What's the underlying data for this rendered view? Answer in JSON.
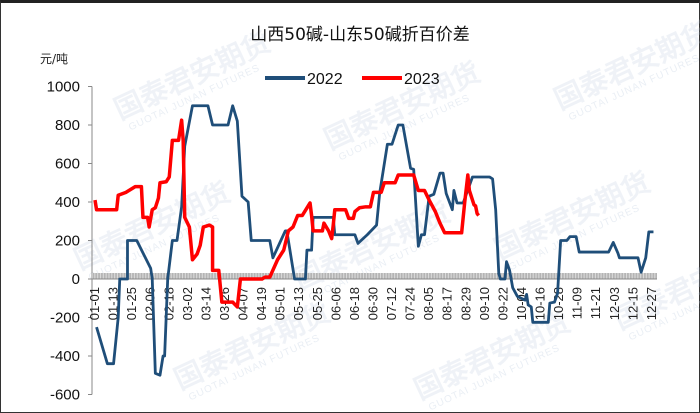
{
  "watermark": {
    "text": "国泰君安期货",
    "subtext": "GUOTAI JUNAN FUTURES"
  },
  "chart_data": {
    "type": "line",
    "title": "山西50碱-山东50碱折百价差",
    "ylabel": "元/吨",
    "xlabel": "",
    "ylim": [
      -600,
      1000
    ],
    "yticks": [
      1000,
      800,
      600,
      400,
      200,
      0,
      -200,
      -400,
      -600
    ],
    "xticks": [
      "01-01",
      "01-13",
      "01-25",
      "02-06",
      "02-18",
      "03-02",
      "03-14",
      "03-26",
      "04-07",
      "04-19",
      "05-01",
      "05-13",
      "05-25",
      "06-06",
      "06-18",
      "06-30",
      "07-12",
      "07-24",
      "08-05",
      "08-17",
      "08-29",
      "09-10",
      "09-22",
      "10-04",
      "10-16",
      "10-28",
      "11-09",
      "11-21",
      "12-03",
      "12-15",
      "12-27"
    ],
    "x_unit": "day of year (0 = 01-01)",
    "legend_position": "top-center",
    "grid": false,
    "series": [
      {
        "name": "2022",
        "color": "#1f4e79",
        "points": [
          [
            1,
            -250
          ],
          [
            8,
            -440
          ],
          [
            12,
            -440
          ],
          [
            15,
            -200
          ],
          [
            16,
            0
          ],
          [
            21,
            0
          ],
          [
            21,
            200
          ],
          [
            27,
            200
          ],
          [
            36,
            55
          ],
          [
            37,
            0
          ],
          [
            39,
            -490
          ],
          [
            42,
            -500
          ],
          [
            44,
            -400
          ],
          [
            45,
            -400
          ],
          [
            47,
            0
          ],
          [
            50,
            200
          ],
          [
            53,
            200
          ],
          [
            56,
            375
          ],
          [
            58,
            690
          ],
          [
            63,
            900
          ],
          [
            73,
            900
          ],
          [
            76,
            800
          ],
          [
            86,
            800
          ],
          [
            89,
            900
          ],
          [
            92,
            820
          ],
          [
            95,
            430
          ],
          [
            99,
            400
          ],
          [
            101,
            200
          ],
          [
            113,
            200
          ],
          [
            115,
            110
          ],
          [
            123,
            250
          ],
          [
            124,
            250
          ],
          [
            129,
            0
          ],
          [
            136,
            0
          ],
          [
            137,
            150
          ],
          [
            140,
            150
          ],
          [
            141,
            320
          ],
          [
            154,
            320
          ],
          [
            155,
            230
          ],
          [
            168,
            230
          ],
          [
            170,
            185
          ],
          [
            176,
            230
          ],
          [
            182,
            280
          ],
          [
            184,
            445
          ],
          [
            189,
            700
          ],
          [
            192,
            700
          ],
          [
            196,
            800
          ],
          [
            199,
            800
          ],
          [
            204,
            575
          ],
          [
            206,
            570
          ],
          [
            209,
            170
          ],
          [
            211,
            230
          ],
          [
            213,
            230
          ],
          [
            216,
            430
          ],
          [
            219,
            440
          ],
          [
            223,
            550
          ],
          [
            225,
            550
          ],
          [
            227,
            445
          ],
          [
            231,
            360
          ],
          [
            232,
            460
          ],
          [
            234,
            395
          ],
          [
            238,
            395
          ],
          [
            244,
            530
          ],
          [
            255,
            530
          ],
          [
            257,
            520
          ],
          [
            259,
            360
          ],
          [
            261,
            30
          ],
          [
            262,
            0
          ],
          [
            265,
            0
          ],
          [
            266,
            90
          ],
          [
            268,
            45
          ],
          [
            270,
            -45
          ],
          [
            273,
            -90
          ],
          [
            278,
            -110
          ],
          [
            279,
            -80
          ],
          [
            280,
            -135
          ],
          [
            282,
            -145
          ],
          [
            283,
            -225
          ],
          [
            293,
            -225
          ],
          [
            294,
            -125
          ],
          [
            297,
            -120
          ],
          [
            299,
            -75
          ],
          [
            301,
            200
          ],
          [
            305,
            200
          ],
          [
            307,
            220
          ],
          [
            311,
            220
          ],
          [
            313,
            140
          ],
          [
            332,
            140
          ],
          [
            335,
            190
          ],
          [
            338,
            135
          ],
          [
            339,
            110
          ],
          [
            351,
            110
          ],
          [
            353,
            35
          ],
          [
            356,
            110
          ],
          [
            358,
            245
          ],
          [
            361,
            245
          ]
        ]
      },
      {
        "name": "2023",
        "color": "#ff0000",
        "points": [
          [
            0,
            410
          ],
          [
            1,
            360
          ],
          [
            14,
            360
          ],
          [
            15,
            435
          ],
          [
            20,
            450
          ],
          [
            26,
            480
          ],
          [
            30,
            480
          ],
          [
            31,
            320
          ],
          [
            34,
            320
          ],
          [
            35,
            270
          ],
          [
            37,
            360
          ],
          [
            39,
            370
          ],
          [
            41,
            420
          ],
          [
            42,
            500
          ],
          [
            46,
            505
          ],
          [
            48,
            530
          ],
          [
            50,
            720
          ],
          [
            54,
            720
          ],
          [
            56,
            825
          ],
          [
            57,
            720
          ],
          [
            58,
            320
          ],
          [
            61,
            270
          ],
          [
            63,
            100
          ],
          [
            66,
            130
          ],
          [
            68,
            175
          ],
          [
            70,
            270
          ],
          [
            74,
            280
          ],
          [
            76,
            270
          ],
          [
            76,
            45
          ],
          [
            80,
            45
          ],
          [
            82,
            -120
          ],
          [
            89,
            -120
          ],
          [
            92,
            -145
          ],
          [
            94,
            0
          ],
          [
            108,
            0
          ],
          [
            110,
            10
          ],
          [
            113,
            10
          ],
          [
            118,
            100
          ],
          [
            122,
            150
          ],
          [
            125,
            250
          ],
          [
            128,
            270
          ],
          [
            131,
            330
          ],
          [
            134,
            330
          ],
          [
            139,
            395
          ],
          [
            140,
            330
          ],
          [
            141,
            250
          ],
          [
            147,
            250
          ],
          [
            148,
            290
          ],
          [
            151,
            250
          ],
          [
            153,
            210
          ],
          [
            154,
            280
          ],
          [
            155,
            360
          ],
          [
            162,
            360
          ],
          [
            164,
            315
          ],
          [
            167,
            315
          ],
          [
            168,
            350
          ],
          [
            171,
            370
          ],
          [
            175,
            375
          ],
          [
            178,
            375
          ],
          [
            180,
            450
          ],
          [
            185,
            450
          ],
          [
            187,
            500
          ],
          [
            194,
            500
          ],
          [
            196,
            540
          ],
          [
            206,
            540
          ],
          [
            209,
            460
          ],
          [
            213,
            460
          ],
          [
            216,
            410
          ],
          [
            220,
            350
          ],
          [
            223,
            290
          ],
          [
            226,
            240
          ],
          [
            237,
            240
          ],
          [
            239,
            400
          ],
          [
            241,
            540
          ],
          [
            242,
            460
          ],
          [
            245,
            385
          ],
          [
            246,
            380
          ],
          [
            247,
            340
          ],
          [
            248,
            330
          ]
        ]
      }
    ]
  }
}
